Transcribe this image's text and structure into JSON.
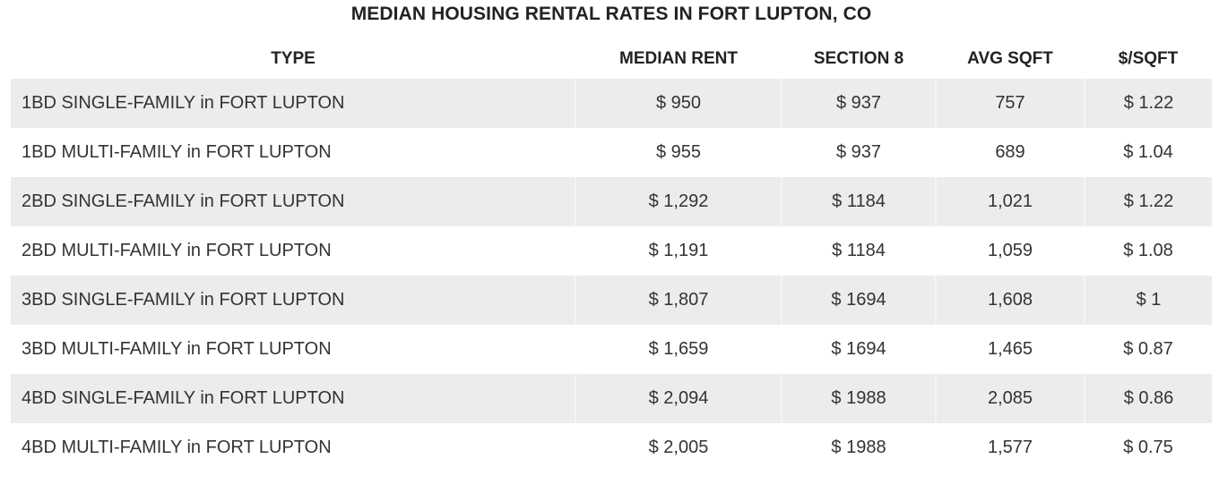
{
  "chart_data": {
    "type": "table",
    "title": "MEDIAN HOUSING RENTAL RATES IN FORT LUPTON, CO",
    "columns": [
      "TYPE",
      "MEDIAN RENT",
      "SECTION 8",
      "AVG SQFT",
      "$/SQFT"
    ],
    "rows": [
      [
        "1BD SINGLE-FAMILY in FORT LUPTON",
        "$ 950",
        "$ 937",
        "757",
        "$ 1.22"
      ],
      [
        "1BD MULTI-FAMILY in FORT LUPTON",
        "$ 955",
        "$ 937",
        "689",
        "$ 1.04"
      ],
      [
        "2BD SINGLE-FAMILY in FORT LUPTON",
        "$ 1,292",
        "$ 1184",
        "1,021",
        "$ 1.22"
      ],
      [
        "2BD MULTI-FAMILY in FORT LUPTON",
        "$ 1,191",
        "$ 1184",
        "1,059",
        "$ 1.08"
      ],
      [
        "3BD SINGLE-FAMILY in FORT LUPTON",
        "$ 1,807",
        "$ 1694",
        "1,608",
        "$ 1"
      ],
      [
        "3BD MULTI-FAMILY in FORT LUPTON",
        "$ 1,659",
        "$ 1694",
        "1,465",
        "$ 0.87"
      ],
      [
        "4BD SINGLE-FAMILY in FORT LUPTON",
        "$ 2,094",
        "$ 1988",
        "2,085",
        "$ 0.86"
      ],
      [
        "4BD MULTI-FAMILY in FORT LUPTON",
        "$ 2,005",
        "$ 1988",
        "1,577",
        "$ 0.75"
      ]
    ],
    "row_shading": "alternating",
    "shade_color": "#ececec"
  }
}
